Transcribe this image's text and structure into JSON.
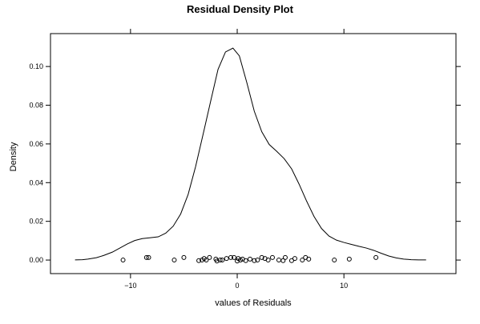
{
  "chart_data": {
    "type": "line",
    "title": "Residual Density Plot",
    "xlabel": "values of Residuals",
    "ylabel": "Density",
    "xlim": [
      -17.5,
      20.5
    ],
    "ylim": [
      -0.007,
      0.117
    ],
    "x_ticks": [
      {
        "value": -10,
        "label": "−10"
      },
      {
        "value": 0,
        "label": "0"
      },
      {
        "value": 10,
        "label": "10"
      }
    ],
    "y_ticks": [
      {
        "value": 0.0,
        "label": "0.00"
      },
      {
        "value": 0.02,
        "label": "0.02"
      },
      {
        "value": 0.04,
        "label": "0.04"
      },
      {
        "value": 0.06,
        "label": "0.06"
      },
      {
        "value": 0.08,
        "label": "0.08"
      },
      {
        "value": 0.1,
        "label": "0.10"
      }
    ],
    "grid": false,
    "series": [
      {
        "x": [
          -15.2,
          -14.5,
          -14.0,
          -13.2,
          -12.5,
          -11.7,
          -11.0,
          -10.3,
          -9.6,
          -8.9,
          -8.2,
          -7.4,
          -6.7,
          -6.0,
          -5.3,
          -4.6,
          -3.9,
          -3.2,
          -2.5,
          -1.8,
          -1.1,
          -0.4,
          0.2,
          0.9,
          1.6,
          2.3,
          3.0,
          3.7,
          4.4,
          5.1,
          5.8,
          6.5,
          7.2,
          7.9,
          8.6,
          9.3,
          10.0,
          10.7,
          11.4,
          12.1,
          12.8,
          13.5,
          14.2,
          14.9,
          15.6,
          16.3,
          17.0,
          17.7
        ],
        "y": [
          0.0001,
          0.0002,
          0.0005,
          0.0012,
          0.0024,
          0.0041,
          0.0062,
          0.0083,
          0.0101,
          0.0111,
          0.0115,
          0.012,
          0.0139,
          0.0175,
          0.0238,
          0.0339,
          0.0483,
          0.0649,
          0.0818,
          0.0985,
          0.1075,
          0.1095,
          0.1055,
          0.0917,
          0.0769,
          0.0663,
          0.0597,
          0.0562,
          0.0524,
          0.0471,
          0.0392,
          0.0305,
          0.0225,
          0.0163,
          0.0124,
          0.0103,
          0.0091,
          0.0081,
          0.0071,
          0.0062,
          0.005,
          0.0035,
          0.0021,
          0.0011,
          0.0005,
          0.0002,
          0.0001,
          0.0001
        ]
      }
    ],
    "rug": {
      "x": [
        -10.7,
        -8.5,
        -8.3,
        -5.9,
        -5.0,
        -3.6,
        -3.3,
        -3.1,
        -2.9,
        -2.6,
        -2.0,
        -1.9,
        -1.6,
        -1.4,
        -1.0,
        -0.6,
        -0.3,
        0.0,
        0.1,
        0.3,
        0.5,
        0.8,
        1.2,
        1.6,
        1.9,
        2.3,
        2.6,
        2.9,
        3.3,
        3.9,
        4.3,
        4.5,
        5.1,
        5.4,
        6.1,
        6.4,
        6.7,
        9.1,
        10.5,
        13.0
      ],
      "y": [
        0.0,
        0.0013,
        0.0013,
        0.0,
        0.0013,
        -0.0003,
        0.0,
        0.0008,
        0.0,
        0.0013,
        0.0005,
        -0.0005,
        0.0,
        0.0,
        0.0008,
        0.0013,
        0.0013,
        -0.0005,
        0.0008,
        0.0,
        0.0005,
        -0.0003,
        0.0005,
        -0.0003,
        0.0,
        0.0013,
        0.0008,
        0.0,
        0.0013,
        0.0,
        -0.0003,
        0.0013,
        -0.0003,
        0.0008,
        0.0,
        0.0013,
        0.0005,
        0.0,
        0.0005,
        0.0013
      ]
    }
  }
}
